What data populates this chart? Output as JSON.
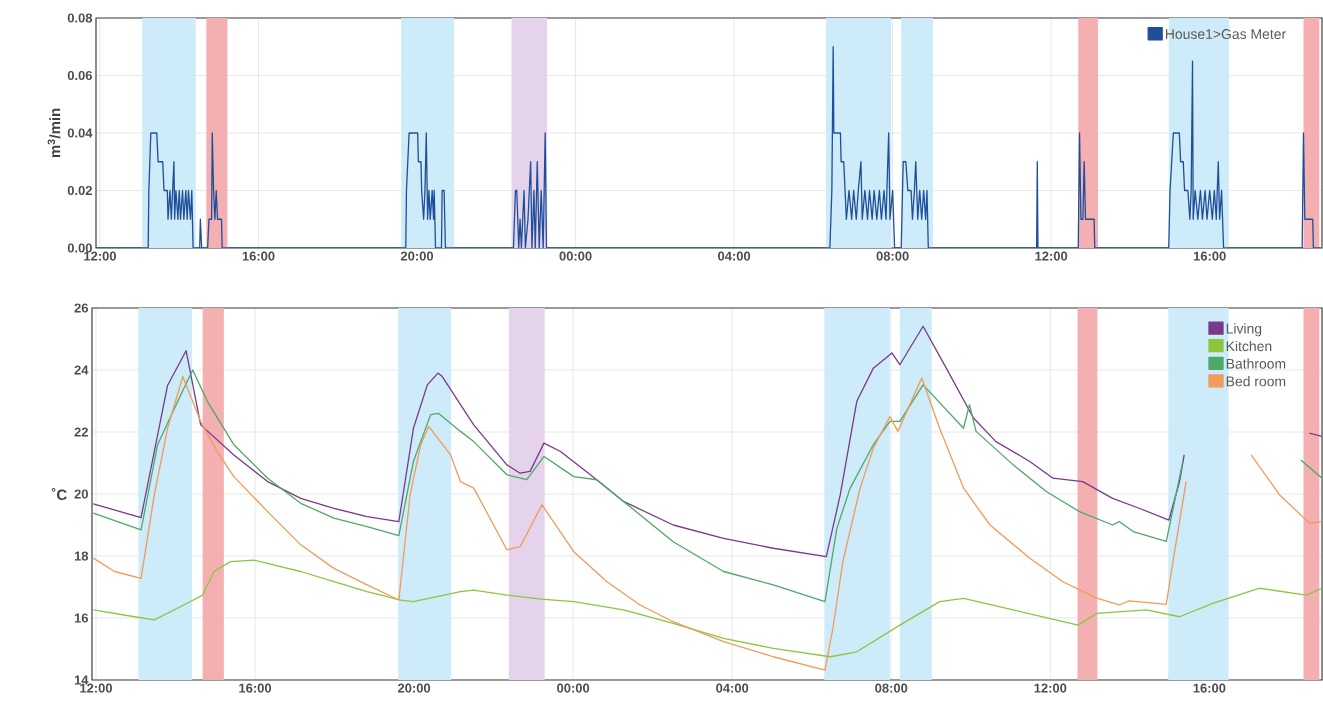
{
  "chart_data": [
    {
      "type": "line",
      "ylabel": "m$^{3}$/min",
      "xlim": [
        "2000-01-01T11:54",
        "2000-01-02T18:50"
      ],
      "ylim": [
        0,
        0.08
      ],
      "xticks": [
        {
          "value": "2000-01-01T12:00",
          "label": "12:00"
        },
        {
          "value": "2000-01-01T16:00",
          "label": "16:00"
        },
        {
          "value": "2000-01-01T20:00",
          "label": "20:00"
        },
        {
          "value": "2000-01-02T00:00",
          "label": "00:00"
        },
        {
          "value": "2000-01-02T04:00",
          "label": "04:00"
        },
        {
          "value": "2000-01-02T08:00",
          "label": "08:00"
        },
        {
          "value": "2000-01-02T12:00",
          "label": "12:00"
        },
        {
          "value": "2000-01-02T16:00",
          "label": "16:00"
        }
      ],
      "yticks": [
        {
          "value": 0,
          "label": "0.00"
        },
        {
          "value": 0.02,
          "label": "0.02"
        },
        {
          "value": 0.04,
          "label": "0.04"
        },
        {
          "value": 0.06,
          "label": "0.06"
        },
        {
          "value": 0.08,
          "label": "0.08"
        }
      ],
      "grid": true,
      "legend": "top right",
      "bands": [
        {
          "axis": "x",
          "from": "2000-01-01T13:04",
          "to": "2000-01-01T14:25",
          "color": "#cdebf8"
        },
        {
          "axis": "x",
          "from": "2000-01-01T14:41",
          "to": "2000-01-01T15:13",
          "color": "#f4b0b0"
        },
        {
          "axis": "x",
          "from": "2000-01-01T19:36",
          "to": "2000-01-01T20:56",
          "color": "#cdebf8"
        },
        {
          "axis": "x",
          "from": "2000-01-01T22:23",
          "to": "2000-01-01T23:17",
          "color": "#e4d3ea"
        },
        {
          "axis": "x",
          "from": "2000-01-02T06:19",
          "to": "2000-01-02T07:58",
          "color": "#cdebf8"
        },
        {
          "axis": "x",
          "from": "2000-01-02T08:13",
          "to": "2000-01-02T09:01",
          "color": "#cdebf8"
        },
        {
          "axis": "x",
          "from": "2000-01-02T12:41",
          "to": "2000-01-02T13:11",
          "color": "#f4b0b0"
        },
        {
          "axis": "x",
          "from": "2000-01-02T14:58",
          "to": "2000-01-02T16:29",
          "color": "#cdebf8"
        },
        {
          "axis": "x",
          "from": "2000-01-02T18:22",
          "to": "2000-01-02T18:46",
          "color": "#f4b0b0"
        }
      ],
      "series": [
        {
          "name": "House1>Gas Meter",
          "color": "#1f4e9a",
          "x": [
            "2000-01-01T11:54",
            "2000-01-01T13:13",
            "2000-01-01T13:14",
            "2000-01-01T13:17",
            "2000-01-01T13:26",
            "2000-01-01T13:28",
            "2000-01-01T13:35",
            "2000-01-01T13:37",
            "2000-01-01T13:42",
            "2000-01-01T13:43",
            "2000-01-01T13:46",
            "2000-01-01T13:48",
            "2000-01-01T13:50",
            "2000-01-01T13:52",
            "2000-01-01T13:53",
            "2000-01-01T13:55",
            "2000-01-01T13:58",
            "2000-01-01T14:00",
            "2000-01-01T14:02",
            "2000-01-01T14:05",
            "2000-01-01T14:07",
            "2000-01-01T14:10",
            "2000-01-01T14:12",
            "2000-01-01T14:14",
            "2000-01-01T14:17",
            "2000-01-01T14:19",
            "2000-01-01T14:21",
            "2000-01-01T14:31",
            "2000-01-01T14:32",
            "2000-01-01T14:34",
            "2000-01-01T14:43",
            "2000-01-01T14:45",
            "2000-01-01T14:49",
            "2000-01-01T14:50",
            "2000-01-01T14:52",
            "2000-01-01T14:54",
            "2000-01-01T14:56",
            "2000-01-01T14:58",
            "2000-01-01T15:04",
            "2000-01-01T15:05",
            "2000-01-01T19:43",
            "2000-01-01T19:44",
            "2000-01-01T19:48",
            "2000-01-01T20:01",
            "2000-01-01T20:02",
            "2000-01-01T20:06",
            "2000-01-01T20:07",
            "2000-01-01T20:10",
            "2000-01-01T20:12",
            "2000-01-01T20:14",
            "2000-01-01T20:16",
            "2000-01-01T20:18",
            "2000-01-01T20:20",
            "2000-01-01T20:23",
            "2000-01-01T20:25",
            "2000-01-01T20:26",
            "2000-01-01T20:28",
            "2000-01-01T20:37",
            "2000-01-01T20:38",
            "2000-01-01T20:41",
            "2000-01-01T20:43",
            "2000-01-01T22:26",
            "2000-01-01T22:29",
            "2000-01-01T22:31",
            "2000-01-01T22:34",
            "2000-01-01T22:36",
            "2000-01-01T22:38",
            "2000-01-01T22:42",
            "2000-01-01T22:44",
            "2000-01-01T22:48",
            "2000-01-01T22:52",
            "2000-01-01T22:54",
            "2000-01-01T22:57",
            "2000-01-01T22:59",
            "2000-01-01T23:02",
            "2000-01-01T23:05",
            "2000-01-01T23:08",
            "2000-01-01T23:11",
            "2000-01-01T23:14",
            "2000-01-01T23:16",
            "2000-01-02T06:25",
            "2000-01-02T06:28",
            "2000-01-02T06:30",
            "2000-01-02T06:31",
            "2000-01-02T06:41",
            "2000-01-02T06:42",
            "2000-01-02T06:46",
            "2000-01-02T06:48",
            "2000-01-02T06:50",
            "2000-01-02T06:54",
            "2000-01-02T06:58",
            "2000-01-02T07:01",
            "2000-01-02T07:05",
            "2000-01-02T07:08",
            "2000-01-02T07:12",
            "2000-01-02T07:14",
            "2000-01-02T07:18",
            "2000-01-02T07:22",
            "2000-01-02T07:25",
            "2000-01-02T07:29",
            "2000-01-02T07:32",
            "2000-01-02T07:36",
            "2000-01-02T07:40",
            "2000-01-02T07:43",
            "2000-01-02T07:47",
            "2000-01-02T07:50",
            "2000-01-02T07:54",
            "2000-01-02T07:56",
            "2000-01-02T08:00",
            "2000-01-02T08:03",
            "2000-01-02T08:13",
            "2000-01-02T08:16",
            "2000-01-02T08:20",
            "2000-01-02T08:23",
            "2000-01-02T08:28",
            "2000-01-02T08:30",
            "2000-01-02T08:33",
            "2000-01-02T08:35",
            "2000-01-02T08:38",
            "2000-01-02T08:41",
            "2000-01-02T08:44",
            "2000-01-02T08:47",
            "2000-01-02T08:50",
            "2000-01-02T08:52",
            "2000-01-02T08:54",
            "2000-01-02T11:38",
            "2000-01-02T11:39",
            "2000-01-02T11:40",
            "2000-01-02T12:41",
            "2000-01-02T12:43",
            "2000-01-02T12:45",
            "2000-01-02T12:48",
            "2000-01-02T12:50",
            "2000-01-02T12:52",
            "2000-01-02T13:05",
            "2000-01-02T13:06",
            "2000-01-02T14:58",
            "2000-01-02T15:00",
            "2000-01-02T15:05",
            "2000-01-02T15:14",
            "2000-01-02T15:16",
            "2000-01-02T15:20",
            "2000-01-02T15:22",
            "2000-01-02T15:27",
            "2000-01-02T15:30",
            "2000-01-02T15:32",
            "2000-01-02T15:34",
            "2000-01-02T15:35",
            "2000-01-02T15:38",
            "2000-01-02T15:42",
            "2000-01-02T15:46",
            "2000-01-02T15:49",
            "2000-01-02T15:53",
            "2000-01-02T15:56",
            "2000-01-02T16:00",
            "2000-01-02T16:04",
            "2000-01-02T16:07",
            "2000-01-02T16:10",
            "2000-01-02T16:13",
            "2000-01-02T16:15",
            "2000-01-02T16:18",
            "2000-01-02T16:21",
            "2000-01-02T18:20",
            "2000-01-02T18:22",
            "2000-01-02T18:24",
            "2000-01-02T18:36",
            "2000-01-02T18:37",
            "2000-01-02T18:48"
          ],
          "values": [
            0,
            0,
            0.02,
            0.04,
            0.04,
            0.03,
            0.03,
            0.02,
            0.02,
            0.01,
            0.02,
            0.01,
            0.02,
            0.03,
            0.01,
            0.02,
            0.01,
            0.02,
            0.01,
            0.02,
            0.01,
            0.02,
            0.01,
            0.02,
            0.01,
            0.02,
            0,
            0,
            0.01,
            0,
            0,
            0.01,
            0.01,
            0.04,
            0.02,
            0.01,
            0.02,
            0.01,
            0.01,
            0,
            0,
            0.02,
            0.04,
            0.04,
            0.03,
            0.03,
            0.02,
            0.01,
            0.02,
            0.04,
            0.01,
            0.02,
            0.01,
            0.02,
            0.01,
            0.02,
            0,
            0,
            0.02,
            0.02,
            0,
            0,
            0.02,
            0.02,
            0,
            0.01,
            0,
            0.02,
            0,
            0.01,
            0.03,
            0,
            0.02,
            0,
            0.03,
            0,
            0.02,
            0,
            0.04,
            0,
            0,
            0.02,
            0.07,
            0.04,
            0.04,
            0.03,
            0.03,
            0.02,
            0.01,
            0.02,
            0.01,
            0.02,
            0.01,
            0.02,
            0.03,
            0.01,
            0.02,
            0.01,
            0.02,
            0.01,
            0.02,
            0.01,
            0.02,
            0.01,
            0.02,
            0.01,
            0.04,
            0.01,
            0.02,
            0,
            0,
            0.03,
            0.03,
            0.02,
            0.02,
            0.01,
            0.02,
            0.03,
            0.01,
            0.02,
            0.01,
            0.02,
            0.01,
            0.02,
            0,
            0,
            0.03,
            0,
            0,
            0.04,
            0.01,
            0.01,
            0.03,
            0.01,
            0.01,
            0,
            0,
            0.02,
            0.04,
            0.04,
            0.03,
            0.03,
            0.02,
            0.02,
            0.01,
            0.02,
            0.065,
            0.01,
            0.02,
            0.01,
            0.02,
            0.01,
            0.02,
            0.01,
            0.02,
            0.01,
            0.02,
            0.01,
            0.03,
            0.01,
            0.02,
            0,
            0,
            0.04,
            0.01,
            0.01,
            0,
            0
          ]
        }
      ]
    },
    {
      "type": "line",
      "ylabel": "˚C",
      "xlim": [
        "2000-01-01T11:54",
        "2000-01-02T18:50"
      ],
      "ylim": [
        14,
        26
      ],
      "xticks": [
        {
          "value": "2000-01-01T12:00",
          "label": "12:00"
        },
        {
          "value": "2000-01-01T16:00",
          "label": "16:00"
        },
        {
          "value": "2000-01-01T20:00",
          "label": "20:00"
        },
        {
          "value": "2000-01-02T00:00",
          "label": "00:00"
        },
        {
          "value": "2000-01-02T04:00",
          "label": "04:00"
        },
        {
          "value": "2000-01-02T08:00",
          "label": "08:00"
        },
        {
          "value": "2000-01-02T12:00",
          "label": "12:00"
        },
        {
          "value": "2000-01-02T16:00",
          "label": "16:00"
        }
      ],
      "yticks": [
        14,
        16,
        18,
        20,
        22,
        24,
        26
      ],
      "grid": true,
      "legend": "top right",
      "bands": [
        {
          "axis": "x",
          "from": "2000-01-01T13:04",
          "to": "2000-01-01T14:25",
          "color": "#cdebf8"
        },
        {
          "axis": "x",
          "from": "2000-01-01T14:41",
          "to": "2000-01-01T15:13",
          "color": "#f4b0b0"
        },
        {
          "axis": "x",
          "from": "2000-01-01T19:36",
          "to": "2000-01-01T20:56",
          "color": "#cdebf8"
        },
        {
          "axis": "x",
          "from": "2000-01-01T22:23",
          "to": "2000-01-01T23:17",
          "color": "#e4d3ea"
        },
        {
          "axis": "x",
          "from": "2000-01-02T06:19",
          "to": "2000-01-02T07:58",
          "color": "#cdebf8"
        },
        {
          "axis": "x",
          "from": "2000-01-02T08:13",
          "to": "2000-01-02T09:01",
          "color": "#cdebf8"
        },
        {
          "axis": "x",
          "from": "2000-01-02T12:41",
          "to": "2000-01-02T13:11",
          "color": "#f4b0b0"
        },
        {
          "axis": "x",
          "from": "2000-01-02T14:58",
          "to": "2000-01-02T16:29",
          "color": "#cdebf8"
        },
        {
          "axis": "x",
          "from": "2000-01-02T18:22",
          "to": "2000-01-02T18:46",
          "color": "#f4b0b0"
        }
      ],
      "series": [
        {
          "name": "Living",
          "color": "#7a3a8a",
          "x": [
            "2000-01-01T11:56",
            "2000-01-01T13:08",
            "2000-01-01T13:33",
            "2000-01-01T13:48",
            "2000-01-01T14:16",
            "2000-01-01T14:38",
            "2000-01-01T15:28",
            "2000-01-01T16:19",
            "2000-01-01T17:09",
            "2000-01-01T17:59",
            "2000-01-01T18:49",
            "2000-01-01T19:37",
            "2000-01-01T19:59",
            "2000-01-01T20:20",
            "2000-01-01T20:36",
            "2000-01-01T20:42",
            "2000-01-01T21:30",
            "2000-01-01T22:20",
            "2000-01-01T22:40",
            "2000-01-01T22:55",
            "2000-01-01T23:16",
            "2000-01-01T23:41",
            "2000-01-02T00:26",
            "2000-01-02T01:16",
            "2000-01-02T02:31",
            "2000-01-02T03:47",
            "2000-01-02T05:02",
            "2000-01-02T06:22",
            "2000-01-02T06:43",
            "2000-01-02T07:08",
            "2000-01-02T07:33",
            "2000-01-02T08:01",
            "2000-01-02T08:13",
            "2000-01-02T08:48",
            "2000-01-02T09:23",
            "2000-01-02T10:04",
            "2000-01-02T10:38",
            "2000-01-02T11:29",
            "2000-01-02T12:04",
            "2000-01-02T12:49",
            "2000-01-02T13:34",
            "2000-01-02T14:14",
            "2000-01-02T14:59",
            "2000-01-02T15:15",
            "2000-01-02T15:22",
            "2000-01-02T16:30",
            "2000-01-02T18:31",
            "2000-01-02T18:50"
          ],
          "values": [
            19.68,
            19.24,
            21.9,
            23.5,
            24.62,
            22.23,
            21.26,
            20.4,
            19.86,
            19.54,
            19.27,
            19.11,
            22.12,
            23.52,
            23.9,
            23.8,
            22.23,
            20.94,
            20.67,
            20.73,
            21.64,
            21.37,
            20.62,
            19.76,
            19.0,
            18.57,
            18.25,
            17.98,
            19.97,
            22.99,
            24.06,
            24.55,
            24.17,
            25.41,
            24.06,
            22.45,
            21.69,
            21.05,
            20.51,
            20.4,
            19.86,
            19.54,
            19.16,
            20.4,
            21.26,
            null,
            21.96,
            21.86
          ]
        },
        {
          "name": "Kitchen",
          "color": "#8cc63f",
          "x": [
            "2000-01-01T11:56",
            "2000-01-01T12:58",
            "2000-01-01T13:28",
            "2000-01-01T14:08",
            "2000-01-01T14:41",
            "2000-01-01T14:58",
            "2000-01-01T15:23",
            "2000-01-01T15:58",
            "2000-01-01T17:09",
            "2000-01-01T17:59",
            "2000-01-01T18:49",
            "2000-01-01T19:40",
            "2000-01-01T19:59",
            "2000-01-01T21:10",
            "2000-01-01T21:30",
            "2000-01-01T22:20",
            "2000-01-01T23:11",
            "2000-01-02T00:01",
            "2000-01-02T01:16",
            "2000-01-02T02:31",
            "2000-01-02T03:47",
            "2000-01-02T05:02",
            "2000-01-02T06:28",
            "2000-01-02T07:08",
            "2000-01-02T08:13",
            "2000-01-02T09:13",
            "2000-01-02T09:49",
            "2000-01-02T11:04",
            "2000-01-02T12:42",
            "2000-01-02T13:10",
            "2000-01-02T14:25",
            "2000-01-02T15:15",
            "2000-01-02T16:05",
            "2000-01-02T17:16",
            "2000-01-02T18:26",
            "2000-01-02T18:50"
          ],
          "values": [
            16.26,
            16.04,
            15.94,
            16.37,
            16.74,
            17.5,
            17.82,
            17.87,
            17.5,
            17.17,
            16.85,
            16.58,
            16.53,
            16.85,
            16.9,
            16.74,
            16.61,
            16.53,
            16.26,
            15.83,
            15.34,
            15.02,
            14.75,
            14.91,
            15.77,
            16.53,
            16.63,
            16.26,
            15.77,
            16.15,
            16.26,
            16.04,
            16.47,
            16.96,
            16.74,
            16.96
          ]
        },
        {
          "name": "Bathroom",
          "color": "#4ea86a",
          "x": [
            "2000-01-01T11:56",
            "2000-01-01T13:08",
            "2000-01-01T13:33",
            "2000-01-01T14:08",
            "2000-01-01T14:26",
            "2000-01-01T14:48",
            "2000-01-01T15:28",
            "2000-01-01T16:19",
            "2000-01-01T17:09",
            "2000-01-01T17:59",
            "2000-01-01T18:49",
            "2000-01-01T19:37",
            "2000-01-01T19:59",
            "2000-01-01T20:25",
            "2000-01-01T20:37",
            "2000-01-01T21:10",
            "2000-01-01T21:30",
            "2000-01-01T22:20",
            "2000-01-01T22:50",
            "2000-01-01T23:16",
            "2000-01-02T00:01",
            "2000-01-02T00:36",
            "2000-01-02T01:16",
            "2000-01-02T02:31",
            "2000-01-02T03:47",
            "2000-01-02T05:02",
            "2000-01-02T06:20",
            "2000-01-02T06:38",
            "2000-01-02T06:58",
            "2000-01-02T07:33",
            "2000-01-02T07:58",
            "2000-01-02T08:13",
            "2000-01-02T08:48",
            "2000-01-02T09:49",
            "2000-01-02T09:58",
            "2000-01-02T10:08",
            "2000-01-02T11:04",
            "2000-01-02T11:54",
            "2000-01-02T12:44",
            "2000-01-02T13:34",
            "2000-01-02T13:44",
            "2000-01-02T14:05",
            "2000-01-02T14:55",
            "2000-01-02T15:20",
            "2000-01-02T16:30",
            "2000-01-02T18:18",
            "2000-01-02T18:50"
          ],
          "values": [
            19.38,
            18.84,
            21.59,
            23.2,
            24.0,
            22.99,
            21.59,
            20.51,
            19.7,
            19.22,
            18.95,
            18.66,
            21.05,
            22.56,
            22.6,
            22.02,
            21.69,
            20.62,
            20.46,
            21.21,
            20.56,
            20.46,
            19.76,
            18.46,
            17.5,
            17.07,
            16.53,
            18.9,
            20.19,
            21.59,
            22.34,
            22.34,
            23.52,
            22.12,
            22.88,
            22.02,
            20.94,
            20.08,
            19.43,
            19.0,
            19.11,
            18.79,
            18.47,
            21.05,
            null,
            21.1,
            20.51
          ]
        },
        {
          "name": "Bed room",
          "color": "#f09a5c",
          "x": [
            "2000-01-01T11:56",
            "2000-01-01T12:28",
            "2000-01-01T13:08",
            "2000-01-01T13:28",
            "2000-01-01T13:48",
            "2000-01-01T14:11",
            "2000-01-01T14:38",
            "2000-01-01T15:03",
            "2000-01-01T15:28",
            "2000-01-01T16:19",
            "2000-01-01T17:09",
            "2000-01-01T17:59",
            "2000-01-01T18:49",
            "2000-01-01T19:37",
            "2000-01-01T19:54",
            "2000-01-01T20:10",
            "2000-01-01T20:22",
            "2000-01-01T20:55",
            "2000-01-01T21:10",
            "2000-01-01T21:30",
            "2000-01-01T22:20",
            "2000-01-01T22:40",
            "2000-01-01T23:13",
            "2000-01-02T00:01",
            "2000-01-02T00:51",
            "2000-01-02T01:41",
            "2000-01-02T02:31",
            "2000-01-02T03:47",
            "2000-01-02T05:02",
            "2000-01-02T06:20",
            "2000-01-02T06:32",
            "2000-01-02T06:47",
            "2000-01-02T07:13",
            "2000-01-02T07:33",
            "2000-01-02T07:58",
            "2000-01-02T08:10",
            "2000-01-02T08:46",
            "2000-01-02T09:13",
            "2000-01-02T09:49",
            "2000-01-02T10:29",
            "2000-01-02T11:29",
            "2000-01-02T12:19",
            "2000-01-02T13:10",
            "2000-01-02T13:44",
            "2000-01-02T13:59",
            "2000-01-02T14:55",
            "2000-01-02T15:05",
            "2000-01-02T15:25",
            "2000-01-02T16:12",
            "2000-01-02T17:03",
            "2000-01-02T17:46",
            "2000-01-02T18:31",
            "2000-01-02T18:50"
          ],
          "values": [
            17.93,
            17.5,
            17.28,
            19.97,
            22.12,
            23.79,
            22.34,
            21.37,
            20.56,
            19.43,
            18.36,
            17.6,
            17.07,
            16.58,
            19.97,
            21.59,
            22.18,
            21.26,
            20.4,
            20.19,
            18.2,
            18.3,
            19.65,
            18.14,
            17.17,
            16.42,
            15.88,
            15.24,
            14.75,
            14.32,
            15.67,
            17.82,
            20.19,
            21.48,
            22.5,
            22.02,
            23.74,
            22.12,
            20.19,
            19.0,
            17.93,
            17.17,
            16.64,
            16.42,
            16.55,
            16.44,
            17.82,
            20.4,
            null,
            21.26,
            19.97,
            19.06,
            19.11
          ]
        }
      ]
    }
  ]
}
